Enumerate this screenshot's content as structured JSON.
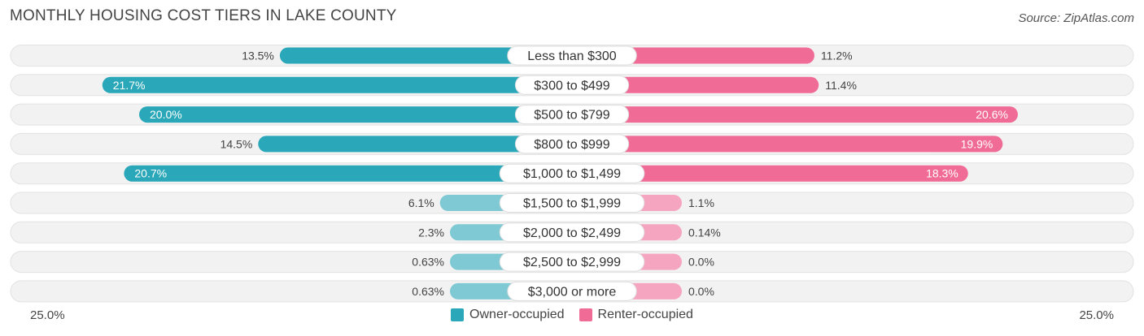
{
  "header": {
    "title": "MONTHLY HOUSING COST TIERS IN LAKE COUNTY",
    "source": "Source: ZipAtlas.com"
  },
  "axis": {
    "left_label": "25.0%",
    "right_label": "25.0%"
  },
  "legend": {
    "owner_label": "Owner-occupied",
    "renter_label": "Renter-occupied"
  },
  "colors": {
    "owner_strong": "#2aa7b8",
    "owner_light": "#7ec9d3",
    "renter_strong": "#f06b96",
    "renter_light": "#f5a5c0",
    "row_background": "#f2f2f2"
  },
  "chart_data": {
    "type": "bar",
    "orientation": "horizontal-diverging",
    "title": "MONTHLY HOUSING COST TIERS IN LAKE COUNTY",
    "xlim": [
      0,
      25
    ],
    "categories": [
      "Less than $300",
      "$300 to $499",
      "$500 to $799",
      "$800 to $999",
      "$1,000 to $1,499",
      "$1,500 to $1,999",
      "$2,000 to $2,499",
      "$2,500 to $2,999",
      "$3,000 or more"
    ],
    "series": [
      {
        "name": "Owner-occupied",
        "values": [
          13.5,
          21.7,
          20.0,
          14.5,
          20.7,
          6.1,
          2.3,
          0.63,
          0.63
        ],
        "labels": [
          "13.5%",
          "21.7%",
          "20.0%",
          "14.5%",
          "20.7%",
          "6.1%",
          "2.3%",
          "0.63%",
          "0.63%"
        ]
      },
      {
        "name": "Renter-occupied",
        "values": [
          11.2,
          11.4,
          20.6,
          19.9,
          18.3,
          1.1,
          0.14,
          0.0,
          0.0
        ],
        "labels": [
          "11.2%",
          "11.4%",
          "20.6%",
          "19.9%",
          "18.3%",
          "1.1%",
          "0.14%",
          "0.0%",
          "0.0%"
        ]
      }
    ],
    "legend_position": "bottom-center"
  }
}
